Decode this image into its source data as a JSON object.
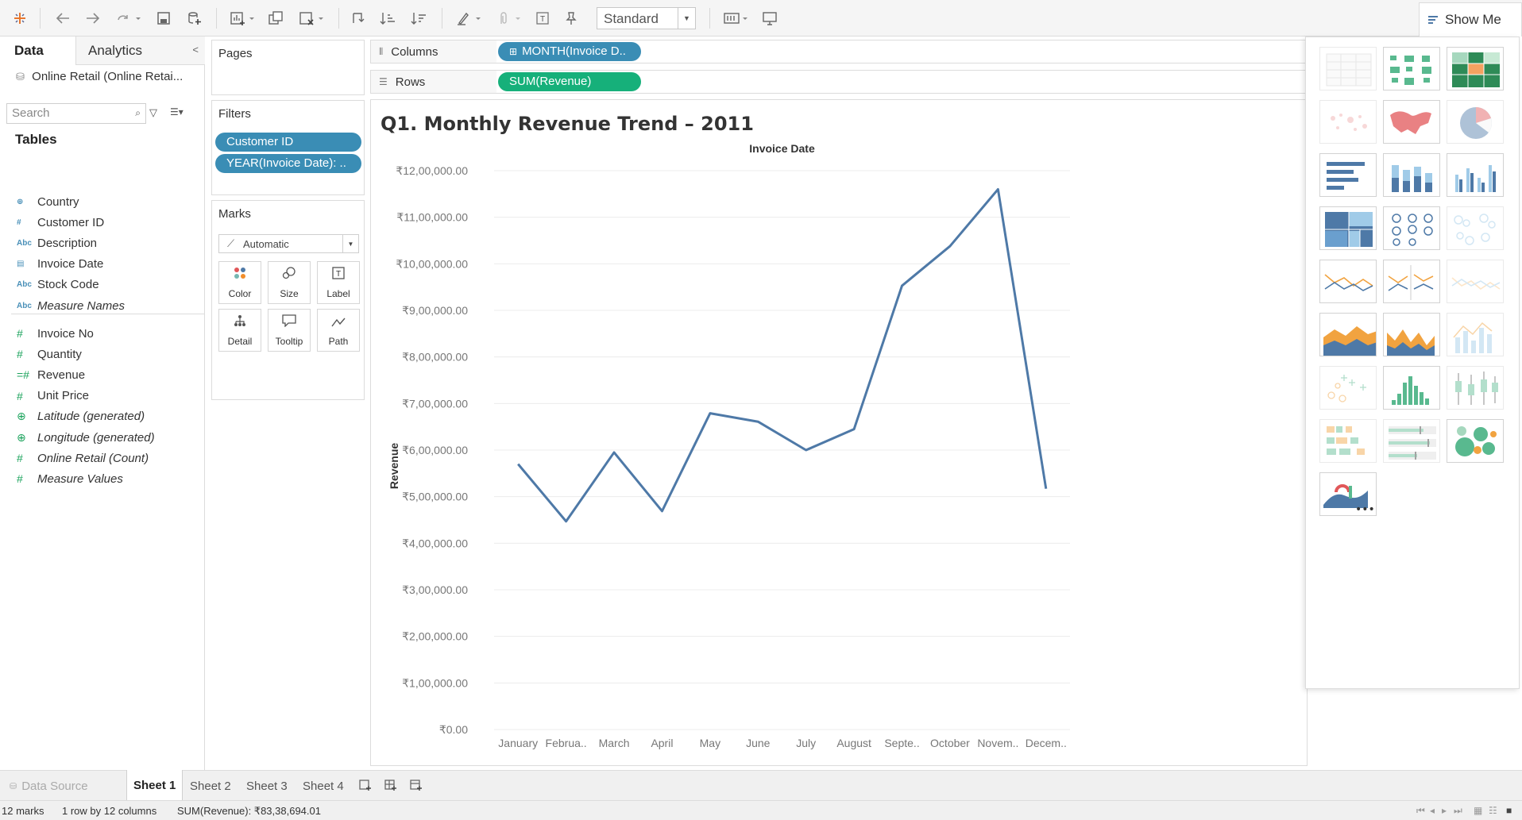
{
  "toolbar": {
    "view_size": "Standard",
    "show_me_label": "Show Me"
  },
  "left_pane": {
    "data_tab": "Data",
    "analytics_tab": "Analytics",
    "datasource": "Online Retail (Online Retai...",
    "search_placeholder": "Search",
    "tables_heading": "Tables",
    "dimensions": [
      {
        "icon": "globe",
        "label": "Country"
      },
      {
        "icon": "#",
        "label": "Customer ID"
      },
      {
        "icon": "Abc",
        "label": "Description"
      },
      {
        "icon": "calendar",
        "label": "Invoice Date"
      },
      {
        "icon": "Abc",
        "label": "Stock Code"
      },
      {
        "icon": "Abc",
        "label": "Measure Names"
      }
    ],
    "measures": [
      {
        "icon": "#",
        "label": "Invoice No"
      },
      {
        "icon": "#",
        "label": "Quantity"
      },
      {
        "icon": "=#",
        "label": "Revenue"
      },
      {
        "icon": "#",
        "label": "Unit Price"
      },
      {
        "icon": "globe",
        "label": "Latitude (generated)"
      },
      {
        "icon": "globe",
        "label": "Longitude (generated)"
      },
      {
        "icon": "#",
        "label": "Online Retail (Count)"
      },
      {
        "icon": "#",
        "label": "Measure Values"
      }
    ]
  },
  "cards": {
    "pages_title": "Pages",
    "filters_title": "Filters",
    "filters": [
      "Customer ID",
      "YEAR(Invoice Date): .."
    ],
    "marks_title": "Marks",
    "mark_type": "Automatic",
    "mark_buttons": [
      "Color",
      "Size",
      "Label",
      "Detail",
      "Tooltip",
      "Path"
    ]
  },
  "shelves": {
    "columns_label": "Columns",
    "columns_pill": "MONTH(Invoice D..",
    "rows_label": "Rows",
    "rows_pill": "SUM(Revenue)"
  },
  "chart_data": {
    "type": "line",
    "title": "Q1. Monthly Revenue Trend – 2011",
    "xlabel": "Invoice Date",
    "ylabel": "Revenue",
    "categories": [
      "January",
      "Februa..",
      "March",
      "April",
      "May",
      "June",
      "July",
      "August",
      "Septe..",
      "October",
      "Novem..",
      "Decem.."
    ],
    "values": [
      570000,
      447000,
      595000,
      469000,
      679000,
      661000,
      600000,
      645000,
      953000,
      1038000,
      1160000,
      517000
    ],
    "ylim": [
      0,
      1200000
    ],
    "y_ticks": [
      1200000,
      1100000,
      1000000,
      900000,
      800000,
      700000,
      600000,
      500000,
      400000,
      300000,
      200000,
      100000,
      0
    ],
    "y_tick_labels": [
      "₹12,00,000.00",
      "₹11,00,000.00",
      "₹10,00,000.00",
      "₹9,00,000.00",
      "₹8,00,000.00",
      "₹7,00,000.00",
      "₹6,00,000.00",
      "₹5,00,000.00",
      "₹4,00,000.00",
      "₹3,00,000.00",
      "₹2,00,000.00",
      "₹1,00,000.00",
      "₹0.00"
    ],
    "line_color": "#4e79a7",
    "grid": true
  },
  "sheets": {
    "data_source": "Data Source",
    "tabs": [
      "Sheet 1",
      "Sheet 2",
      "Sheet 3",
      "Sheet 4"
    ],
    "active": "Sheet 1"
  },
  "status": {
    "marks": "12 marks",
    "rows_cols": "1 row by 12 columns",
    "sum": "SUM(Revenue): ₹83,38,694.01"
  }
}
